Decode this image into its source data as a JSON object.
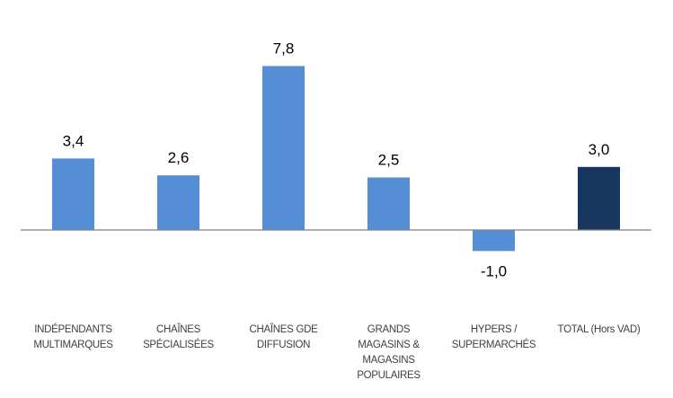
{
  "chart_data": {
    "type": "bar",
    "title": "",
    "xlabel": "",
    "ylabel": "",
    "ylim": [
      -3.0,
      9.0
    ],
    "grid": false,
    "legend": "none",
    "categories": [
      [
        "INDÉPENDANTS",
        "MULTIMARQUES"
      ],
      [
        "CHAÎNES",
        "SPÉCIALISÉES"
      ],
      [
        "CHAÎNES GDE",
        "DIFFUSION"
      ],
      [
        "GRANDS",
        "MAGASINS &",
        "MAGASINS",
        "POPULAIRES"
      ],
      [
        "HYPERS /",
        "SUPERMARCHÉS"
      ],
      [
        "TOTAL (Hors VAD)"
      ]
    ],
    "values": [
      3.4,
      2.6,
      7.8,
      2.5,
      -1.0,
      3.0
    ],
    "value_labels": [
      "3,4",
      "2,6",
      "7,8",
      "2,5",
      "-1,0",
      "3,0"
    ],
    "bar_colors": [
      "#558ed5",
      "#558ed5",
      "#558ed5",
      "#558ed5",
      "#558ed5",
      "#17375e"
    ],
    "axis_color": "#808080"
  }
}
